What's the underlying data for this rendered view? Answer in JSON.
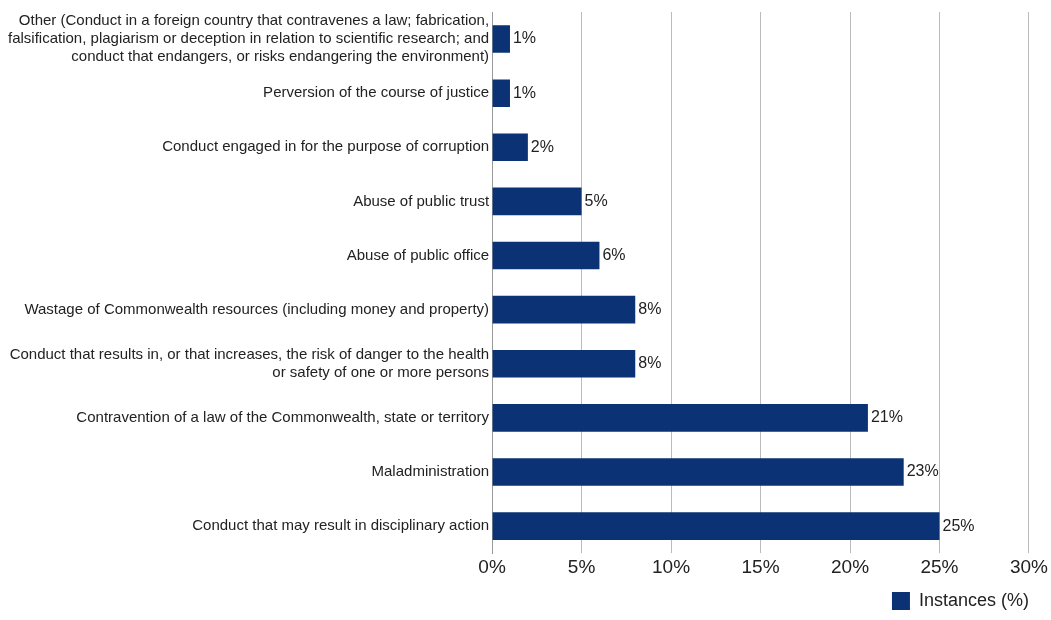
{
  "chart_data": {
    "type": "bar",
    "orientation": "horizontal",
    "categories": [
      "Other (Conduct in a foreign country that contravenes a law; fabrication, falsification, plagiarism or deception in relation to scientific research; and conduct that endangers, or risks endangering the environment)",
      "Perversion of the course of justice",
      "Conduct engaged in for the purpose of corruption",
      "Abuse of public trust",
      "Abuse of public office",
      "Wastage of Commonwealth resources (including money and property)",
      "Conduct that results in, or that increases, the risk of danger to the health or safety of one or more persons",
      "Contravention of a law of the Commonwealth, state or territory",
      "Maladministration",
      "Conduct that may result in disciplinary action"
    ],
    "series": [
      {
        "name": "Instances (%)",
        "color": "#0b3274",
        "values": [
          1,
          1,
          2,
          5,
          6,
          8,
          8,
          21,
          23,
          25
        ],
        "value_labels": [
          "1%",
          "1%",
          "2%",
          "5%",
          "6%",
          "8%",
          "8%",
          "21%",
          "23%",
          "25%"
        ]
      }
    ],
    "xlim": [
      0,
      30
    ],
    "xticks": [
      {
        "value": 0,
        "label": "0%"
      },
      {
        "value": 5,
        "label": "5%"
      },
      {
        "value": 10,
        "label": "10%"
      },
      {
        "value": 15,
        "label": "15%"
      },
      {
        "value": 20,
        "label": "20%"
      },
      {
        "value": 25,
        "label": "25%"
      },
      {
        "value": 30,
        "label": "30%"
      }
    ],
    "grid": "x",
    "legend": "bottom right"
  }
}
